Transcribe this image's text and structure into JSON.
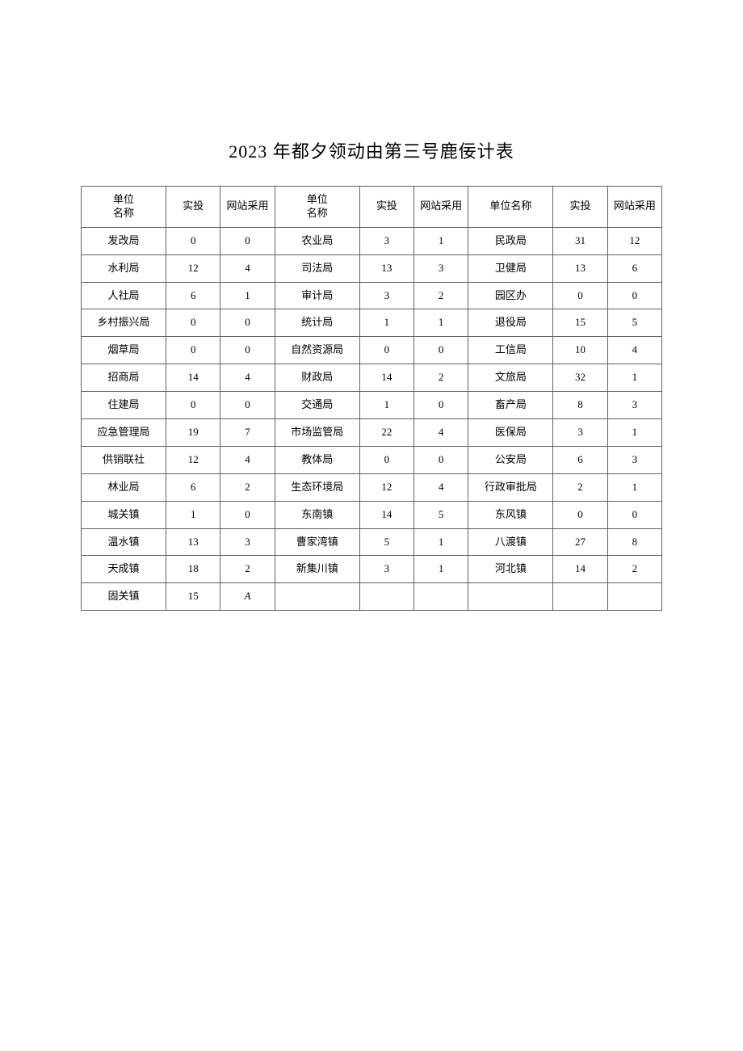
{
  "title": "2023 年都夕领动由第三号鹿佞计表",
  "headers": {
    "h1": "单位\n名称",
    "h2": "实投",
    "h3": "网站采用",
    "h4": "单位\n名称",
    "h5": "实投",
    "h6": "网站采用",
    "h7": "单位名称",
    "h8": "实投",
    "h9": "网站采用"
  },
  "rows": [
    [
      "发改局",
      "0",
      "0",
      "农业局",
      "3",
      "1",
      "民政局",
      "31",
      "12"
    ],
    [
      "水利局",
      "12",
      "4",
      "司法局",
      "13",
      "3",
      "卫健局",
      "13",
      "6"
    ],
    [
      "人社局",
      "6",
      "1",
      "审计局",
      "3",
      "2",
      "园区办",
      "0",
      "0"
    ],
    [
      "乡村振兴局",
      "0",
      "0",
      "统计局",
      "1",
      "1",
      "退役局",
      "15",
      "5"
    ],
    [
      "烟草局",
      "0",
      "0",
      "自然资源局",
      "0",
      "0",
      "工信局",
      "10",
      "4"
    ],
    [
      "招商局",
      "14",
      "4",
      "财政局",
      "14",
      "2",
      "文旅局",
      "32",
      "1"
    ],
    [
      "住建局",
      "0",
      "0",
      "交通局",
      "1",
      "0",
      "畜产局",
      "8",
      "3"
    ],
    [
      "应急管理局",
      "19",
      "7",
      "市场监管局",
      "22",
      "4",
      "医保局",
      "3",
      "1"
    ],
    [
      "供销联社",
      "12",
      "4",
      "教体局",
      "0",
      "0",
      "公安局",
      "6",
      "3"
    ],
    [
      "林业局",
      "6",
      "2",
      "生态环境局",
      "12",
      "4",
      "行政审批局",
      "2",
      "1"
    ],
    [
      "城关镇",
      "1",
      "0",
      "东南镇",
      "14",
      "5",
      "东风镇",
      "0",
      "0"
    ],
    [
      "温水镇",
      "13",
      "3",
      "曹家湾镇",
      "5",
      "1",
      "八渡镇",
      "27",
      "8"
    ],
    [
      "天成镇",
      "18",
      "2",
      "新集川镇",
      "3",
      "1",
      "河北镇",
      "14",
      "2"
    ],
    [
      "固关镇",
      "15",
      "A",
      "",
      "",
      "",
      "",
      "",
      ""
    ]
  ],
  "style": {
    "background_color": "#ffffff",
    "border_color": "#606060",
    "title_fontsize": 22,
    "cell_fontsize": 13,
    "font_family": "SimSun",
    "col_widths_percent": [
      12.5,
      8,
      8,
      12.5,
      8,
      8,
      12.5,
      8,
      8
    ],
    "italic_cell": {
      "row": 13,
      "col": 2
    }
  }
}
